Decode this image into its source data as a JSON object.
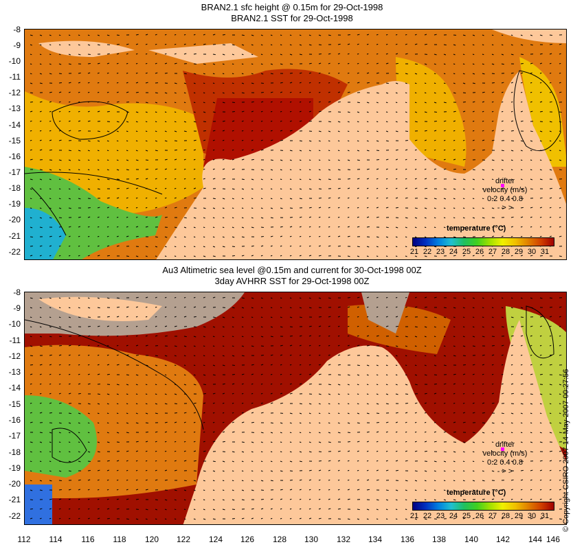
{
  "panels": [
    {
      "title_line1": "BRAN2.1 sfc height @ 0.15m for 29-Oct-1998",
      "title_line2": "BRAN2.1 SST for 29-Oct-1998"
    },
    {
      "title_line1": "Au3 Altimetric sea level  @0.15m and current for 30-Oct-1998 00Z",
      "title_line2": "3day AVHRR SST for 29-Oct-1998 00Z"
    }
  ],
  "y_labels": [
    "-8",
    "-9",
    "-10",
    "-11",
    "-12",
    "-13",
    "-14",
    "-15",
    "-16",
    "-17",
    "-18",
    "-19",
    "-20",
    "-21",
    "-22"
  ],
  "x_labels": [
    "112",
    "114",
    "116",
    "118",
    "120",
    "122",
    "124",
    "126",
    "128",
    "130",
    "132",
    "134",
    "136",
    "138",
    "140",
    "142",
    "144",
    "146"
  ],
  "legend": {
    "title": "temperature (°C)",
    "ticks": [
      "21",
      "22",
      "23",
      "24",
      "25",
      "26",
      "27",
      "28",
      "29",
      "30",
      "31"
    ],
    "colors": [
      "#000080",
      "#0030c0",
      "#0080e0",
      "#20c0d0",
      "#20c060",
      "#40d020",
      "#a0e000",
      "#f0f000",
      "#f0c000",
      "#e08000",
      "#d04000",
      "#a00000"
    ]
  },
  "drifter": {
    "line1": "drifter",
    "line2": "velocity (m/s)",
    "line3": "0.2  0.4  0.8",
    "line4": "-    >    >"
  },
  "copyright": "© Copyright CSIRO 2007   14-May-2007 00:27:56",
  "colors": {
    "land": "#fdc89a",
    "ice_gray": "#b4a090"
  }
}
